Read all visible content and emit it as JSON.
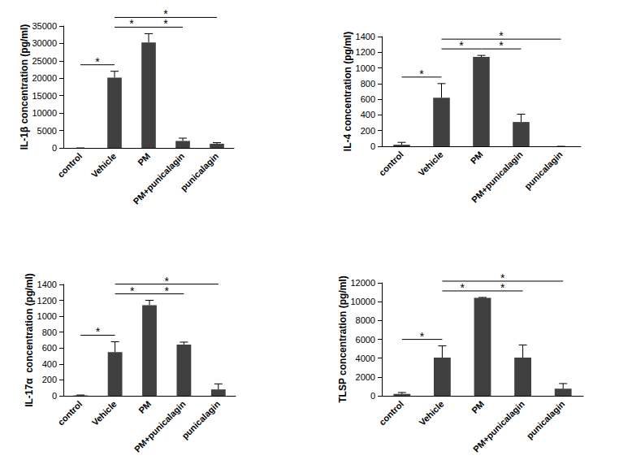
{
  "chart_data": [
    {
      "type": "bar",
      "y_label": "IL-1β concentration (pg/ml)",
      "categories": [
        "control",
        "Vehicle",
        "PM",
        "PM+punicalagin",
        "punicalagin"
      ],
      "values": [
        0,
        20200,
        30300,
        2000,
        1200
      ],
      "errors": [
        0,
        1800,
        2500,
        800,
        300
      ],
      "color": "#404040",
      "ylim": [
        0,
        35000
      ],
      "yticks": [
        0,
        5000,
        10000,
        15000,
        20000,
        25000,
        30000,
        35000
      ],
      "grid": false,
      "annotations": [
        {
          "between": [
            "control",
            "Vehicle"
          ],
          "label": "*"
        },
        {
          "between": [
            "Vehicle",
            "PM"
          ],
          "label": "*"
        },
        {
          "between": [
            "PM",
            "PM+punicalagin"
          ],
          "label": "*"
        },
        {
          "between": [
            "Vehicle",
            "punicalagin"
          ],
          "label": "*"
        }
      ]
    },
    {
      "type": "bar",
      "y_label": "IL-4 concentration (pg/ml)",
      "categories": [
        "control",
        "Vehicle",
        "PM",
        "PM+punicalagin",
        "punicalagin"
      ],
      "values": [
        20,
        620,
        1140,
        310,
        0
      ],
      "errors": [
        30,
        180,
        20,
        100,
        0
      ],
      "color": "#404040",
      "ylim": [
        0,
        1400
      ],
      "yticks": [
        0,
        200,
        400,
        600,
        800,
        1000,
        1200,
        1400
      ],
      "grid": false,
      "annotations": [
        {
          "between": [
            "control",
            "Vehicle"
          ],
          "label": "*"
        },
        {
          "between": [
            "Vehicle",
            "PM"
          ],
          "label": "*"
        },
        {
          "between": [
            "PM",
            "PM+punicalagin"
          ],
          "label": "*"
        },
        {
          "between": [
            "Vehicle",
            "punicalagin"
          ],
          "label": "*"
        }
      ]
    },
    {
      "type": "bar",
      "y_label": "IL-17α  concentration (pg/ml)",
      "categories": [
        "control",
        "Vehicle",
        "PM",
        "PM+punicalagin",
        "punicalagin"
      ],
      "values": [
        5,
        550,
        1140,
        645,
        80
      ],
      "errors": [
        5,
        130,
        60,
        30,
        70
      ],
      "color": "#404040",
      "ylim": [
        0,
        1400
      ],
      "yticks": [
        0,
        200,
        400,
        600,
        800,
        1000,
        1200,
        1400
      ],
      "grid": false,
      "annotations": [
        {
          "between": [
            "control",
            "Vehicle"
          ],
          "label": "*"
        },
        {
          "between": [
            "Vehicle",
            "PM"
          ],
          "label": "*"
        },
        {
          "between": [
            "PM",
            "PM+punicalagin"
          ],
          "label": "*"
        },
        {
          "between": [
            "Vehicle",
            "punicalagin"
          ],
          "label": "*"
        }
      ]
    },
    {
      "type": "bar",
      "y_label": "TLSP concentration (pg/ml)",
      "categories": [
        "control",
        "Vehicle",
        "PM",
        "PM+punicalagin",
        "punicalagin"
      ],
      "values": [
        200,
        4050,
        10400,
        4050,
        750
      ],
      "errors": [
        150,
        1250,
        50,
        1350,
        550
      ],
      "color": "#404040",
      "ylim": [
        0,
        12000
      ],
      "yticks": [
        0,
        2000,
        4000,
        6000,
        8000,
        10000,
        12000
      ],
      "grid": false,
      "annotations": [
        {
          "between": [
            "control",
            "Vehicle"
          ],
          "label": "*"
        },
        {
          "between": [
            "Vehicle",
            "PM"
          ],
          "label": "*"
        },
        {
          "between": [
            "PM",
            "PM+punicalagin"
          ],
          "label": "*"
        },
        {
          "between": [
            "Vehicle",
            "punicalagin"
          ],
          "label": "*"
        }
      ]
    }
  ]
}
